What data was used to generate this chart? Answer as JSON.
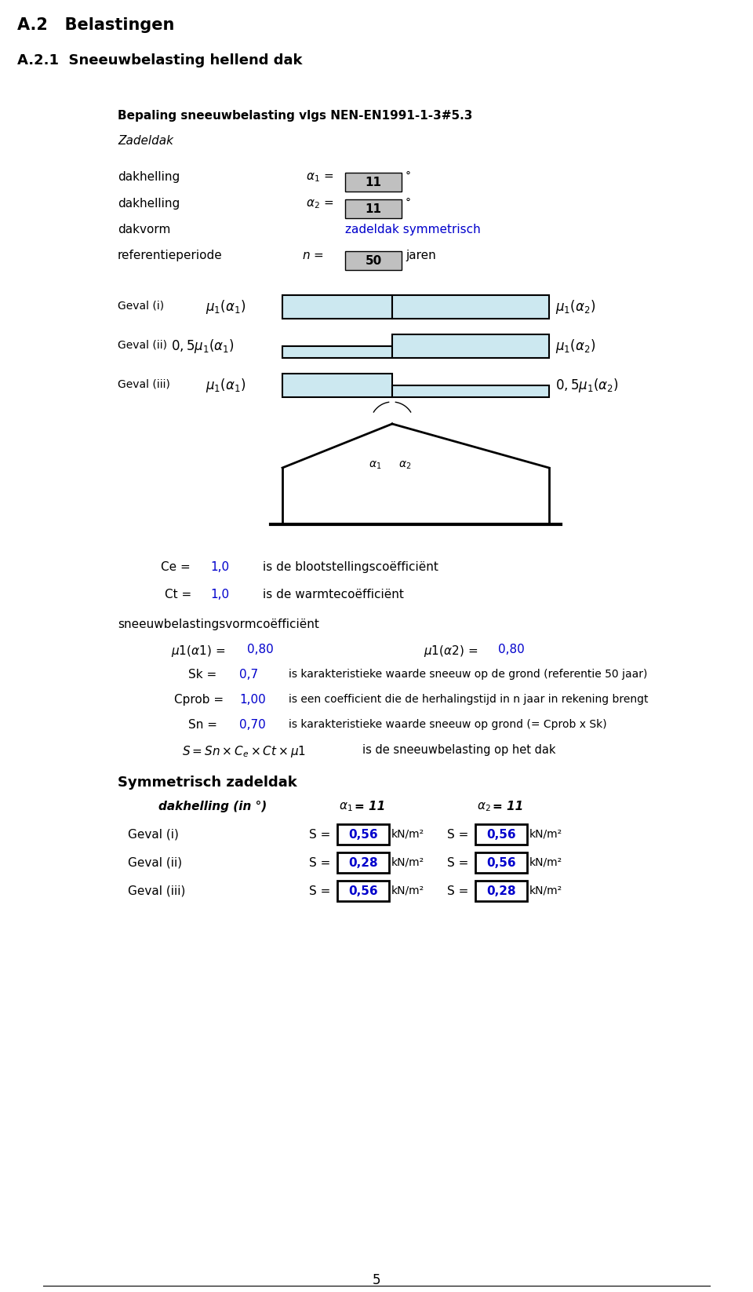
{
  "title1": "A.2   Belastingen",
  "title2": "A.2.1  Sneeuwbelasting hellend dak",
  "subtitle": "Bepaling sneeuwbelasting vlgs NEN-EN1991-1-3#5.3",
  "subtitle2": "Zadeldak",
  "label_dakhelling1": "dakhelling",
  "label_dakhelling2": "dakhelling",
  "label_dakvorm": "dakvorm",
  "label_ref": "referentieperiode",
  "alpha1_val": "11",
  "alpha2_val": "11",
  "dakvorm_val": "zadeldak symmetrisch",
  "ref_val": "50",
  "ref_unit": "jaren",
  "geval_i": "Geval (i)",
  "geval_ii": "Geval (ii)",
  "geval_iii": "Geval (iii)",
  "ce_label": "Ce =",
  "ce_val": "1,0",
  "ce_desc": "is de blootstellingscoëfficiënt",
  "ct_label": "Ct =",
  "ct_val": "1,0",
  "ct_desc": "is de warmtecoëfficiënt",
  "sneeuw_header": "sneeuwbelastingsvormcoëfficiënt",
  "mu1a1_val": "0,80",
  "mu1a2_val": "0,80",
  "sk_val": "0,7",
  "sk_desc": "is karakteristieke waarde sneeuw op de grond (referentie 50 jaar)",
  "cprob_val": "1,00",
  "cprob_desc": "is een coefficient die de herhalingstijd in n jaar in rekening brengt",
  "sn_val": "0,70",
  "sn_desc": "is karakteristieke waarde sneeuw op grond (= Cprob x Sk)",
  "s_desc": "is de sneeuwbelasting op het dak",
  "sym_header": "Symmetrisch zadeldak",
  "dakhelling_in": "dakhelling (in °)",
  "geval_i_s1": "0,56",
  "geval_i_s2": "0,56",
  "geval_ii_s1": "0,28",
  "geval_ii_s2": "0,56",
  "geval_iii_s1": "0,56",
  "geval_iii_s2": "0,28",
  "knm2": "kN/m²",
  "page_num": "5",
  "box_fill": "#cce8f0",
  "box_gray": "#c0c0c0",
  "blue_color": "#0000cc",
  "black": "#000000",
  "white": "#ffffff"
}
